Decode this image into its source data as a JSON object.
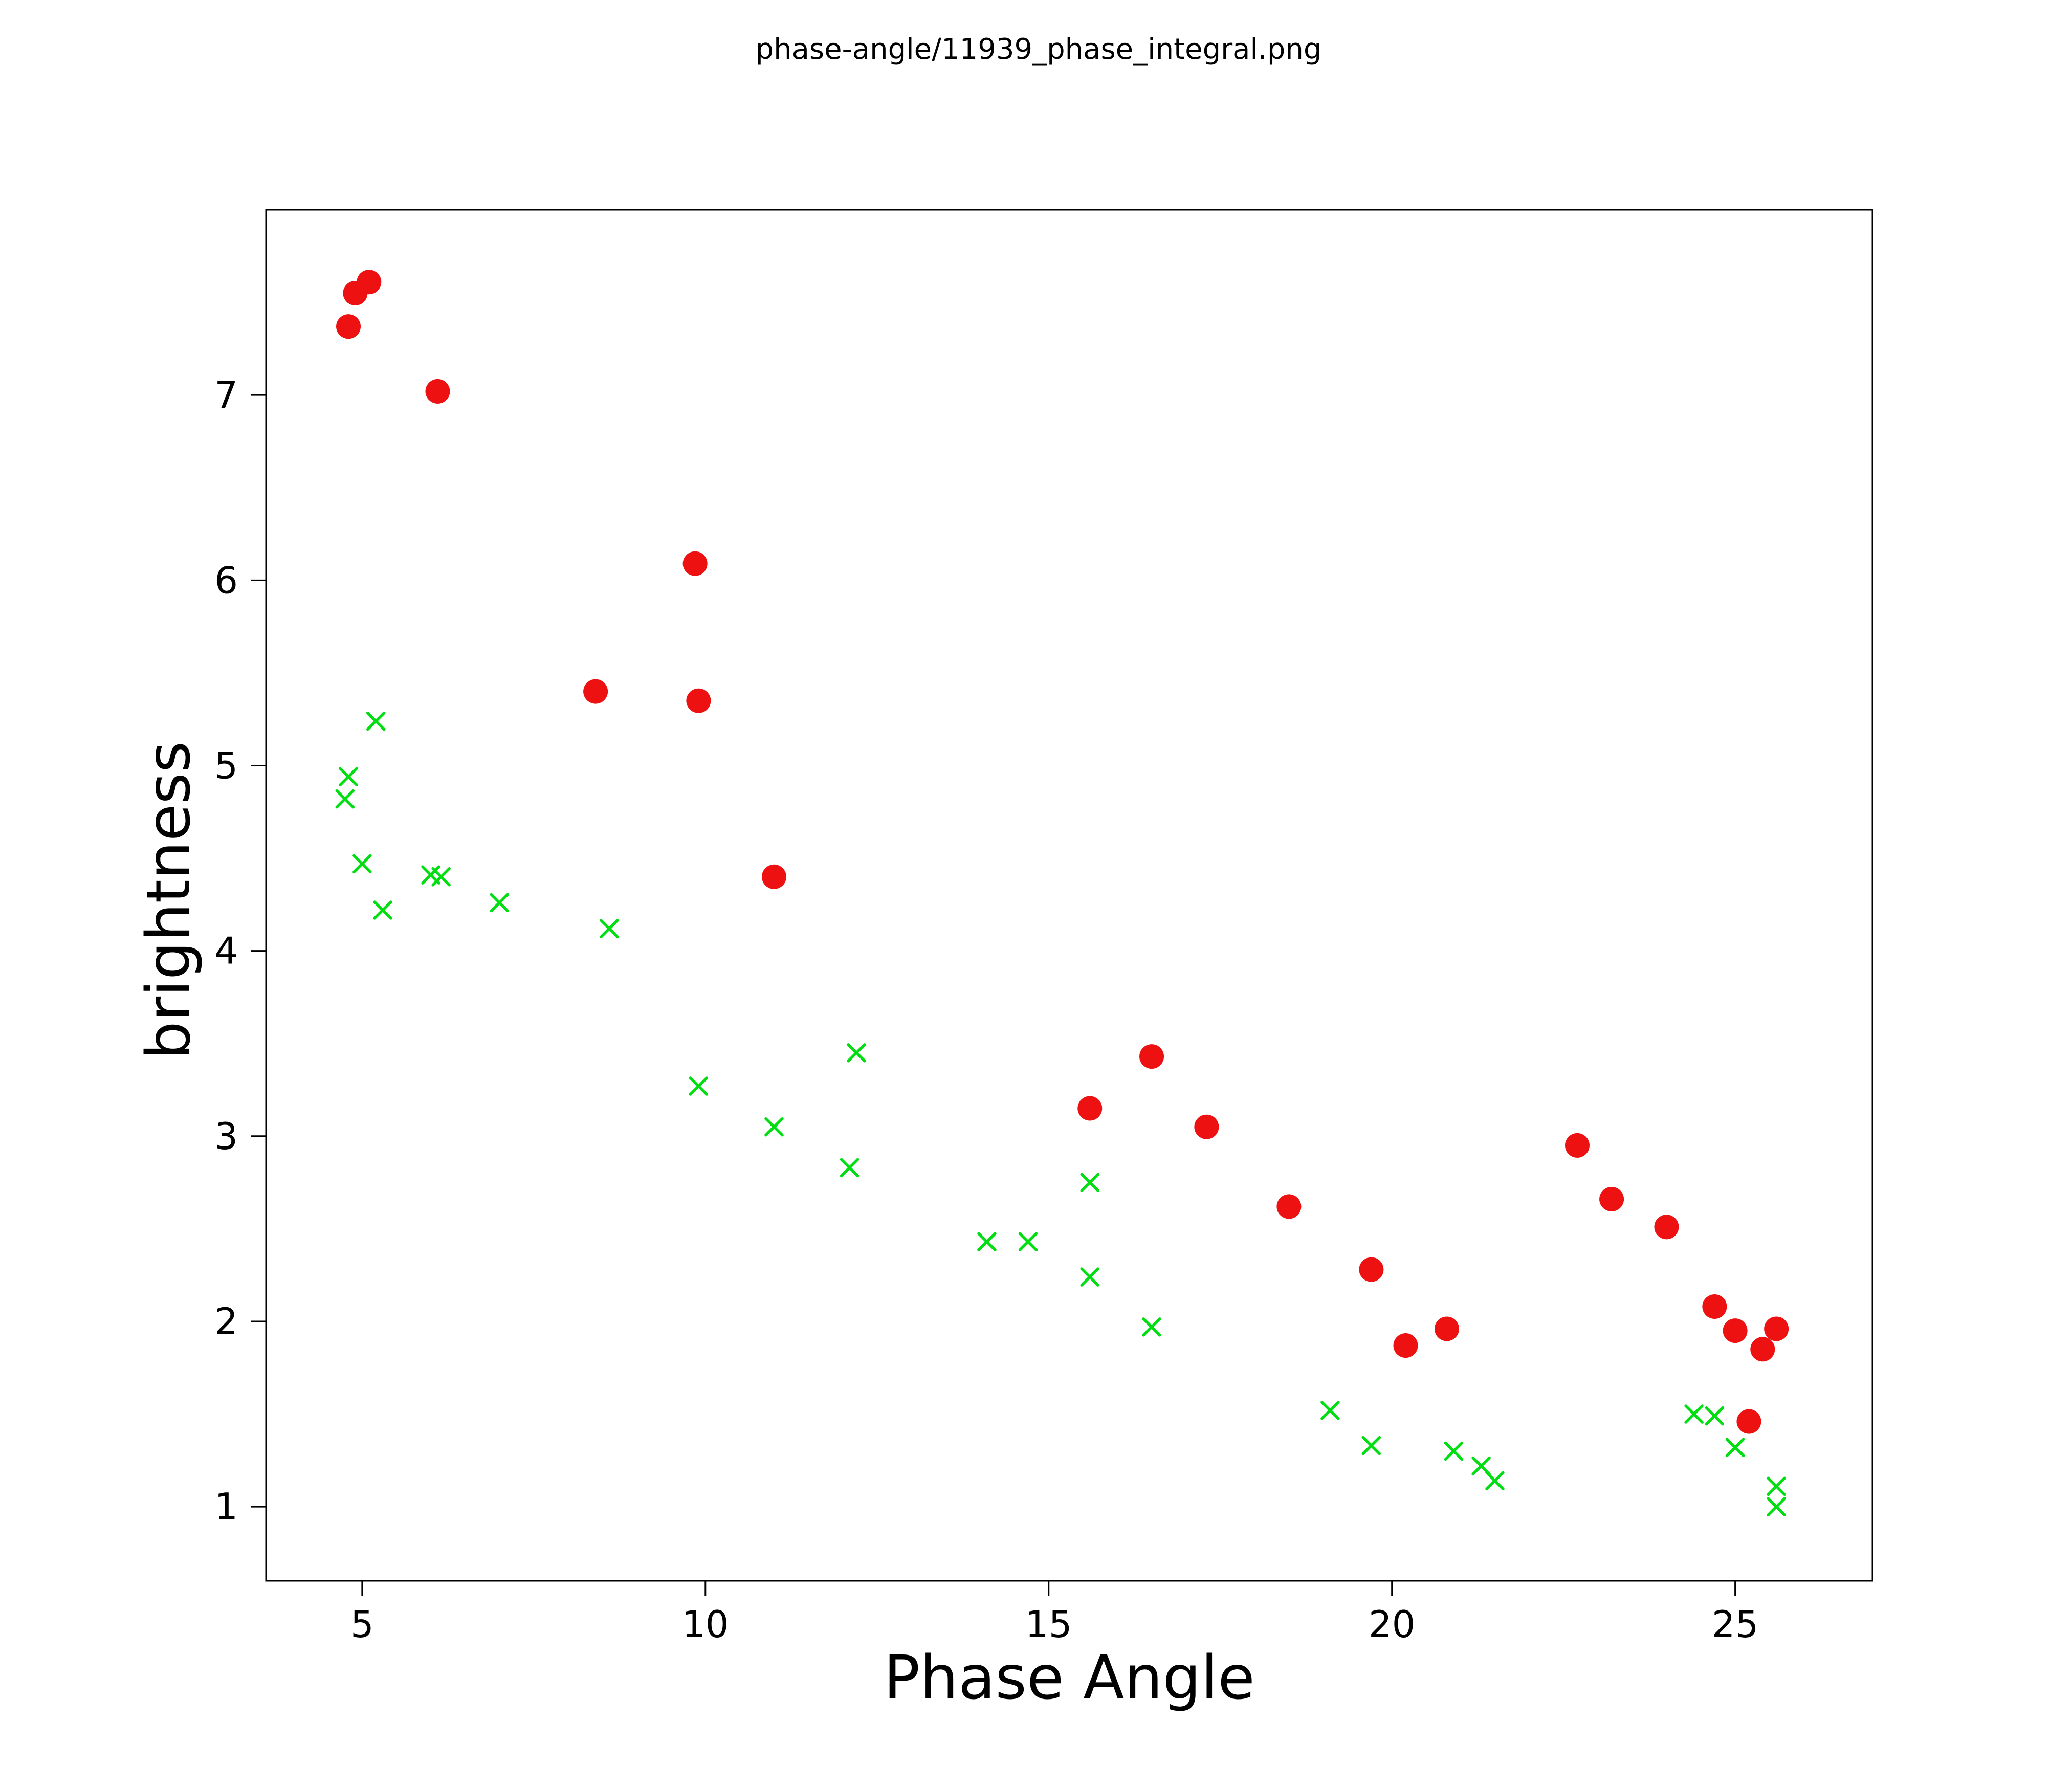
{
  "title": "phase-angle/11939_phase_integral.png",
  "chart_data": {
    "type": "scatter",
    "title": "phase-angle/11939_phase_integral.png",
    "xlabel": "Phase Angle",
    "ylabel": "brightness",
    "xlim": [
      3.6,
      27.0
    ],
    "ylim": [
      0.6,
      8.0
    ],
    "xticks": [
      5,
      10,
      15,
      20,
      25
    ],
    "yticks": [
      1,
      2,
      3,
      4,
      5,
      6,
      7
    ],
    "grid": false,
    "legend": "none",
    "series": [
      {
        "name": "red-circles",
        "marker": "circle",
        "color": "#ee1111",
        "points": [
          [
            4.8,
            7.37
          ],
          [
            4.9,
            7.55
          ],
          [
            5.1,
            7.61
          ],
          [
            6.1,
            7.02
          ],
          [
            8.4,
            5.4
          ],
          [
            9.85,
            6.09
          ],
          [
            9.9,
            5.35
          ],
          [
            11.0,
            4.4
          ],
          [
            15.6,
            3.15
          ],
          [
            16.5,
            3.43
          ],
          [
            17.3,
            3.05
          ],
          [
            18.5,
            2.62
          ],
          [
            19.7,
            2.28
          ],
          [
            20.2,
            1.87
          ],
          [
            20.8,
            1.96
          ],
          [
            22.7,
            2.95
          ],
          [
            23.2,
            2.66
          ],
          [
            24.0,
            2.51
          ],
          [
            24.7,
            2.08
          ],
          [
            25.0,
            1.95
          ],
          [
            25.2,
            1.46
          ],
          [
            25.4,
            1.85
          ],
          [
            25.6,
            1.96
          ]
        ]
      },
      {
        "name": "green-crosses",
        "marker": "x",
        "color": "#00dd11",
        "points": [
          [
            4.75,
            4.82
          ],
          [
            4.8,
            4.94
          ],
          [
            5.0,
            4.47
          ],
          [
            5.2,
            5.24
          ],
          [
            5.3,
            4.22
          ],
          [
            6.0,
            4.41
          ],
          [
            6.15,
            4.4
          ],
          [
            7.0,
            4.26
          ],
          [
            8.6,
            4.12
          ],
          [
            9.9,
            3.27
          ],
          [
            11.0,
            3.05
          ],
          [
            12.1,
            2.83
          ],
          [
            12.2,
            3.45
          ],
          [
            14.1,
            2.43
          ],
          [
            14.7,
            2.43
          ],
          [
            15.6,
            2.75
          ],
          [
            15.6,
            2.24
          ],
          [
            16.5,
            1.97
          ],
          [
            19.1,
            1.52
          ],
          [
            19.7,
            1.33
          ],
          [
            20.9,
            1.3
          ],
          [
            21.3,
            1.22
          ],
          [
            21.5,
            1.14
          ],
          [
            24.4,
            1.5
          ],
          [
            24.7,
            1.49
          ],
          [
            25.0,
            1.32
          ],
          [
            25.6,
            1.11
          ],
          [
            25.6,
            1.0
          ]
        ]
      }
    ]
  }
}
